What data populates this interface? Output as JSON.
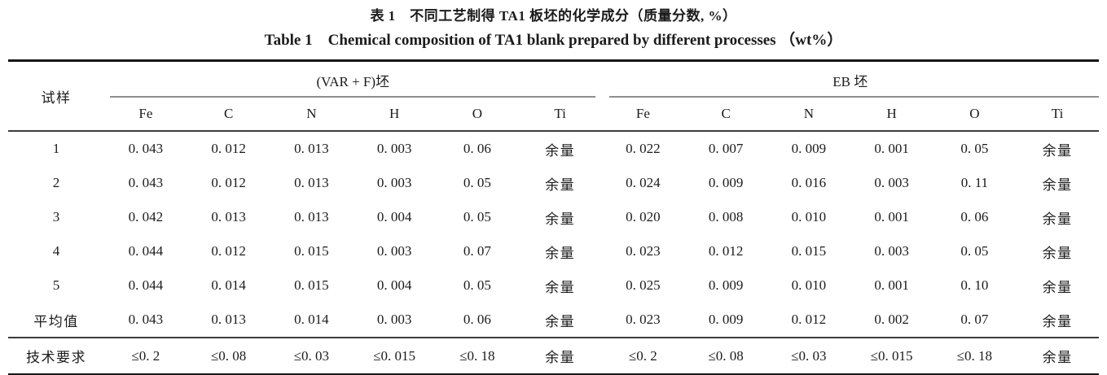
{
  "titles": {
    "zh": "表 1　不同工艺制得 TA1 板坯的化学成分（质量分数, %）",
    "en": "Table 1 Chemical composition of TA1 blank prepared by different processes （wt%）"
  },
  "table": {
    "sample_header": "试样",
    "groups": [
      {
        "label": "(VAR + F)坯",
        "elements": [
          "Fe",
          "C",
          "N",
          "H",
          "O",
          "Ti"
        ]
      },
      {
        "label": "EB 坯",
        "elements": [
          "Fe",
          "C",
          "N",
          "H",
          "O",
          "Ti"
        ]
      }
    ],
    "rows": [
      {
        "label": "1",
        "var_f": [
          "0. 043",
          "0. 012",
          "0. 013",
          "0. 003",
          "0. 06",
          "余量"
        ],
        "eb": [
          "0. 022",
          "0. 007",
          "0. 009",
          "0. 001",
          "0. 05",
          "余量"
        ]
      },
      {
        "label": "2",
        "var_f": [
          "0. 043",
          "0. 012",
          "0. 013",
          "0. 003",
          "0. 05",
          "余量"
        ],
        "eb": [
          "0. 024",
          "0. 009",
          "0. 016",
          "0. 003",
          "0. 11",
          "余量"
        ]
      },
      {
        "label": "3",
        "var_f": [
          "0. 042",
          "0. 013",
          "0. 013",
          "0. 004",
          "0. 05",
          "余量"
        ],
        "eb": [
          "0. 020",
          "0. 008",
          "0. 010",
          "0. 001",
          "0. 06",
          "余量"
        ]
      },
      {
        "label": "4",
        "var_f": [
          "0. 044",
          "0. 012",
          "0. 015",
          "0. 003",
          "0. 07",
          "余量"
        ],
        "eb": [
          "0. 023",
          "0. 012",
          "0. 015",
          "0. 003",
          "0. 05",
          "余量"
        ]
      },
      {
        "label": "5",
        "var_f": [
          "0. 044",
          "0. 014",
          "0. 015",
          "0. 004",
          "0. 05",
          "余量"
        ],
        "eb": [
          "0. 025",
          "0. 009",
          "0. 010",
          "0. 001",
          "0. 10",
          "余量"
        ]
      },
      {
        "label": "平均值",
        "var_f": [
          "0. 043",
          "0. 013",
          "0. 014",
          "0. 003",
          "0. 06",
          "余量"
        ],
        "eb": [
          "0. 023",
          "0. 009",
          "0. 012",
          "0. 002",
          "0. 07",
          "余量"
        ]
      }
    ],
    "requirement": {
      "label": "技术要求",
      "var_f": [
        "≤0. 2",
        "≤0. 08",
        "≤0. 03",
        "≤0. 015",
        "≤0. 18",
        "余量"
      ],
      "eb": [
        "≤0. 2",
        "≤0. 08",
        "≤0. 03",
        "≤0. 015",
        "≤0. 18",
        "余量"
      ]
    }
  }
}
